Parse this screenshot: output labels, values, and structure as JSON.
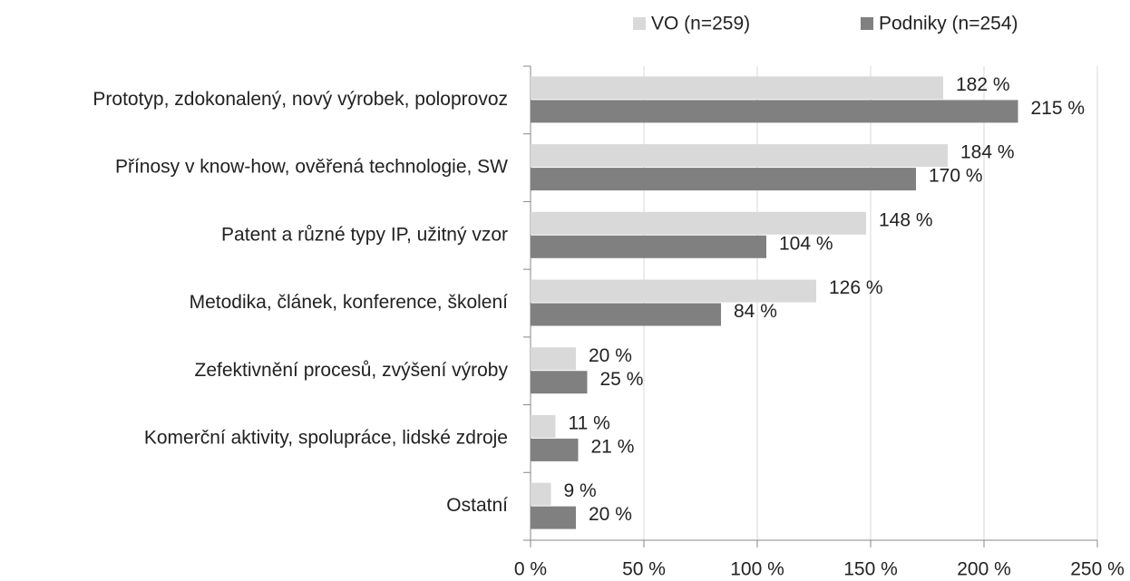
{
  "chart_data": {
    "type": "hbar",
    "categories": [
      "Prototyp, zdokonalený, nový výrobek, poloprovoz",
      "Přínosy v know-how, ověřená technologie, SW",
      "Patent a různé typy IP, užitný vzor",
      "Metodika, článek, konference, školení",
      "Zefektivnění procesů, zvýšení výroby",
      "Komerční aktivity, spolupráce, lidské zdroje",
      "Ostatní"
    ],
    "series": [
      {
        "name": "VO (n=259)",
        "color": "#d9d9d9",
        "values": [
          182,
          184,
          148,
          126,
          20,
          11,
          9
        ],
        "value_labels": [
          "182 %",
          "184 %",
          "148 %",
          "126 %",
          "20 %",
          "11 %",
          "9 %"
        ]
      },
      {
        "name": "Podniky (n=254)",
        "color": "#808080",
        "values": [
          215,
          170,
          104,
          84,
          25,
          21,
          20
        ],
        "value_labels": [
          "215 %",
          "170 %",
          "104 %",
          "84 %",
          "25 %",
          "21 %",
          "20 %"
        ]
      }
    ],
    "xlim": [
      0,
      250
    ],
    "xticks": [
      {
        "value": 0,
        "label": "0 %"
      },
      {
        "value": 50,
        "label": "50 %"
      },
      {
        "value": 100,
        "label": "100 %"
      },
      {
        "value": 150,
        "label": "150 %"
      },
      {
        "value": 200,
        "label": "200 %"
      },
      {
        "value": 250,
        "label": "250 %"
      }
    ],
    "grid": true,
    "legend": "top"
  }
}
